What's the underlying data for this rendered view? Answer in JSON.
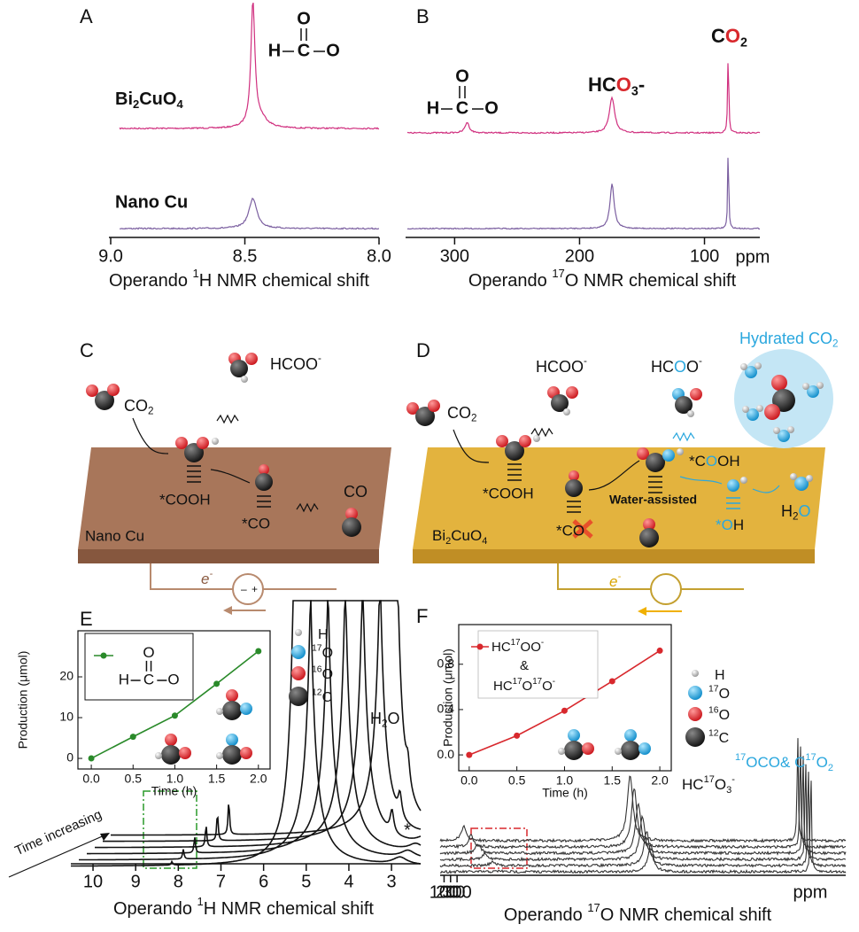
{
  "panel_a": {
    "label": "A",
    "sample_1": [
      "Bi",
      "2",
      "CuO",
      "4"
    ],
    "sample_2": "Nano Cu",
    "formate": [
      "O",
      "H",
      "C",
      "O"
    ],
    "axis": {
      "xlim": [
        9.0,
        8.0
      ],
      "xticks": [
        {
          "value": 9,
          "label": "9.0"
        },
        8.5,
        {
          "value": 8,
          "label": "8.0"
        }
      ],
      "xlabel": [
        "Operando ",
        "1",
        "H NMR chemical shift"
      ]
    }
  },
  "panel_b": {
    "label": "B",
    "co2": [
      "C",
      "O",
      "2"
    ],
    "hco3": [
      "HC",
      "O",
      "3",
      "-"
    ],
    "formate": [
      "O",
      "H",
      "C",
      "O"
    ],
    "axis": {
      "xlim": [
        335,
        55
      ],
      "xticks": [
        300,
        200,
        100
      ],
      "unit": "ppm",
      "xlabel": [
        "Operando ",
        "17",
        "O NMR chemical shift"
      ]
    }
  },
  "panel_c": {
    "label": "C",
    "surface": "Nano Cu",
    "co2": [
      "CO",
      "2"
    ],
    "hcoo": [
      "HCOO",
      "-"
    ],
    "cooh": "*COOH",
    "co_ads": "*CO",
    "co_gas": "CO",
    "electron": [
      "e",
      "-"
    ]
  },
  "panel_d": {
    "label": "D",
    "surface": [
      "Bi",
      "2",
      "CuO",
      "4"
    ],
    "hydrated": [
      "Hydrated CO",
      "2"
    ],
    "co2": [
      "CO",
      "2"
    ],
    "hcoo_1": [
      "HCOO",
      "-"
    ],
    "hcoo_2": [
      "HC",
      "O",
      "O",
      "-"
    ],
    "cooh_1": "*COOH",
    "co_ads": "*CO",
    "cooh_2": [
      "*C",
      "O",
      "OH"
    ],
    "water_assisted": "Water-assisted",
    "oh": [
      "*",
      "O",
      "H"
    ],
    "h2o": [
      "H",
      "2",
      "O"
    ],
    "electron": [
      "e",
      "-"
    ]
  },
  "panel_e": {
    "label": "E",
    "legend": {
      "h": "H",
      "o17": [
        "17",
        "O"
      ],
      "o16": [
        "16",
        "O"
      ],
      "c12": [
        "12",
        "C"
      ]
    },
    "water": [
      "H",
      "2",
      "O"
    ],
    "star": "*",
    "time_increasing": "Time increasing",
    "axis": {
      "xlim": [
        10.25,
        2.67
      ],
      "xticks": [
        10,
        9,
        8,
        7,
        6,
        5,
        4,
        3
      ],
      "xlabel": [
        "Operando ",
        "1",
        "H NMR chemical shift"
      ]
    },
    "chart_data": {
      "type": "line",
      "xlabel": "Time (h)",
      "ylabel": "Production (μmol)",
      "legend_formula": [
        "O",
        "H",
        "C",
        "O"
      ],
      "x": [
        0,
        0.5,
        1,
        1.5,
        2
      ],
      "series": [
        {
          "color": "#2a8a2a",
          "values": [
            0,
            5.3,
            10.5,
            18.3,
            26.3
          ]
        }
      ],
      "xlim": [
        -0.16,
        2.14
      ],
      "ylim": [
        -2.6,
        31.3
      ],
      "xticks": [
        {
          "value": 0,
          "label": "0.0"
        },
        0.5,
        {
          "value": 1,
          "label": "1.0"
        },
        1.5,
        {
          "value": 2,
          "label": "2.0"
        }
      ],
      "yticks": [
        0,
        10,
        20
      ]
    }
  },
  "panel_f": {
    "label": "F",
    "legend": {
      "h": "H",
      "o17": [
        "17",
        "O"
      ],
      "o16": [
        "16",
        "O"
      ],
      "c12": [
        "12",
        "C"
      ]
    },
    "hco3": [
      "HC",
      "17",
      "O",
      "3",
      "-"
    ],
    "co2": [
      "17",
      "OCO& C",
      "17",
      "O",
      "2"
    ],
    "axis": {
      "xlim": [
        312,
        39
      ],
      "xticks": [
        300,
        200,
        100
      ],
      "unit": "ppm",
      "xlabel": [
        "Operando ",
        "17",
        "O NMR chemical shift"
      ]
    },
    "chart_data": {
      "type": "line",
      "xlabel": "Time (h)",
      "ylabel": "Production (μmol)",
      "legend_1": [
        "HC",
        "17",
        "OO",
        "-"
      ],
      "legend_amp": "&",
      "legend_2": [
        "HC",
        "17",
        "O",
        "17",
        "O",
        "-"
      ],
      "x": [
        0,
        0.5,
        1,
        1.5,
        2
      ],
      "series": [
        {
          "color": "#d8282d",
          "values": [
            0,
            0.17,
            0.39,
            0.65,
            0.92
          ]
        }
      ],
      "xlim": [
        -0.11,
        2.12
      ],
      "ylim": [
        -0.14,
        1.15
      ],
      "xticks": [
        {
          "value": 0,
          "label": "0.0"
        },
        0.5,
        {
          "value": 1,
          "label": "1.0"
        },
        1.5,
        {
          "value": 2,
          "label": "2.0"
        }
      ],
      "yticks": [
        {
          "value": 0,
          "label": "0.0"
        },
        0.4,
        0.8
      ]
    }
  }
}
